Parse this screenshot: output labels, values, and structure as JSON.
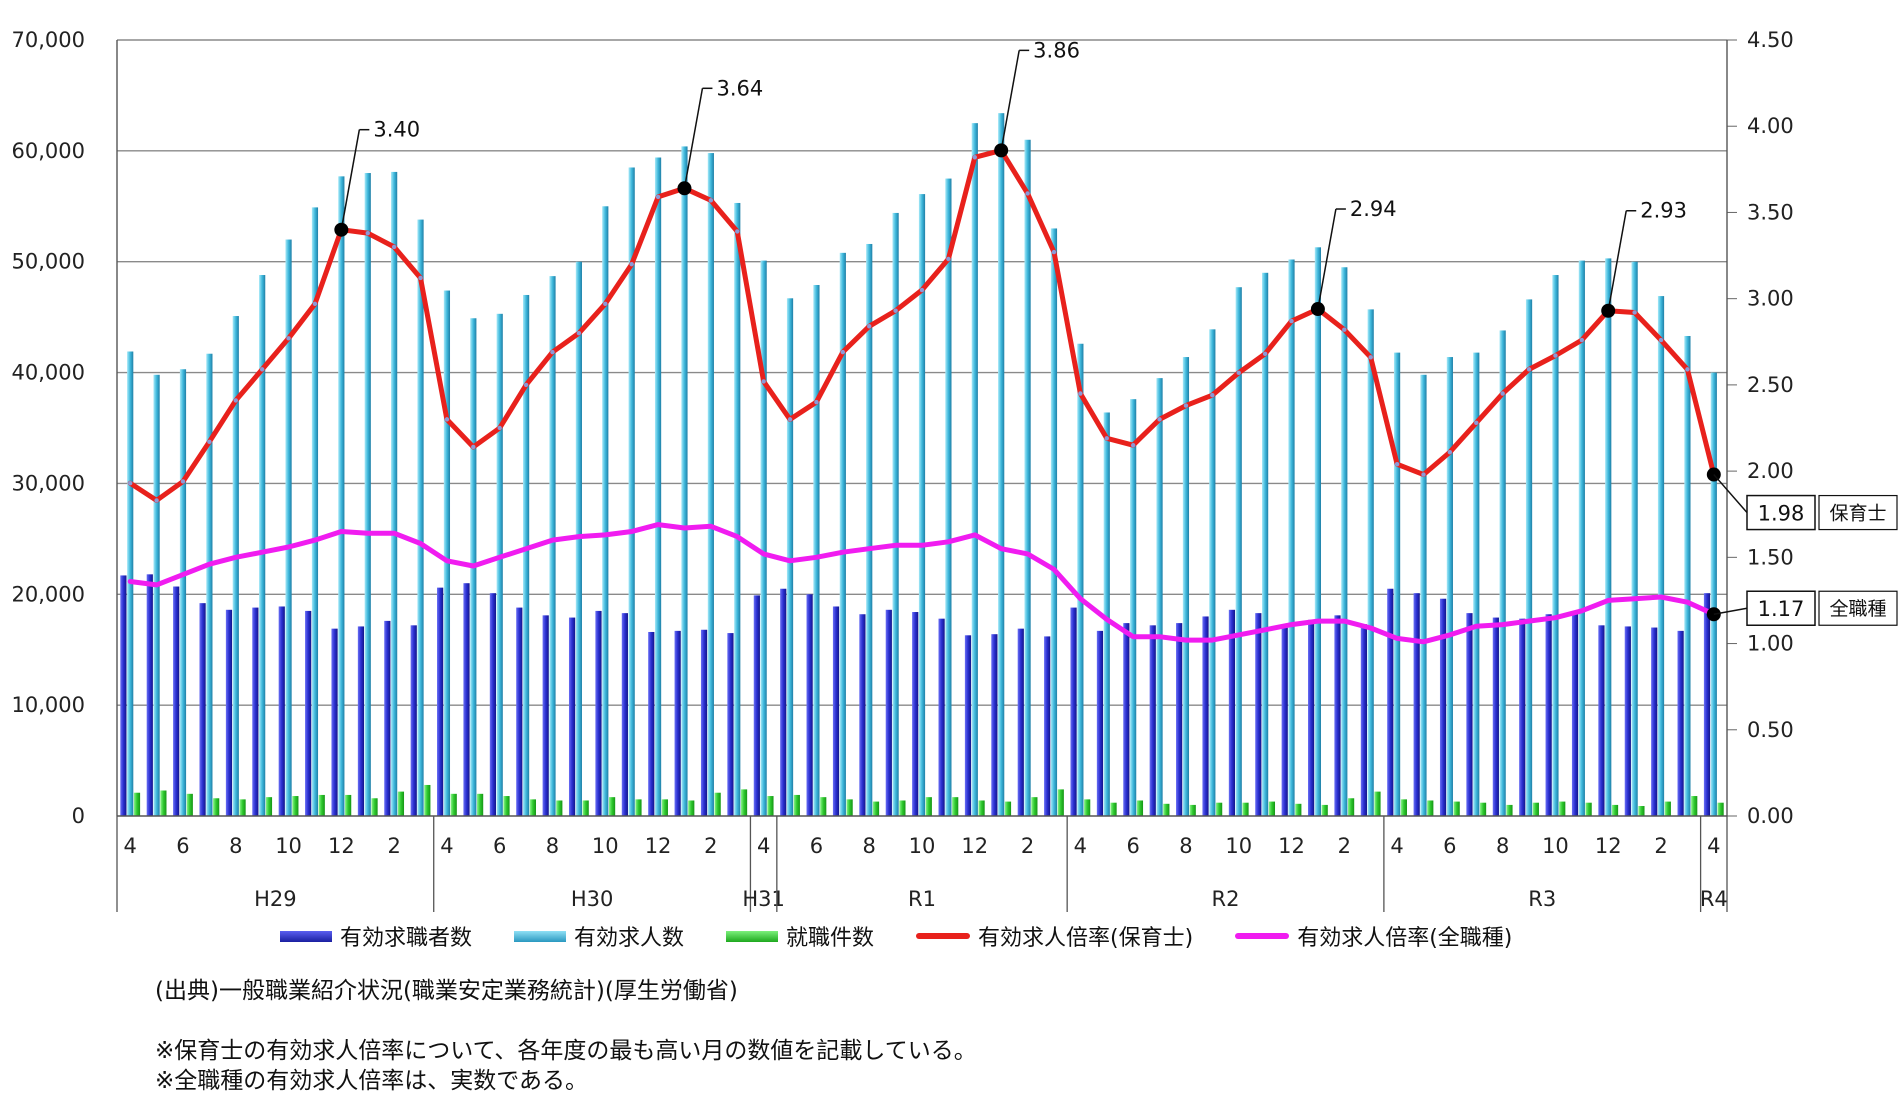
{
  "chart_data": {
    "type": "bar+line",
    "title": "",
    "xlabel": "",
    "ylabel_left": "",
    "ylabel_right": "",
    "ylim_left": [
      0,
      70000
    ],
    "ylim_right": [
      0,
      4.5
    ],
    "yticks_left": [
      "0",
      "10,000",
      "20,000",
      "30,000",
      "40,000",
      "50,000",
      "60,000",
      "70,000"
    ],
    "yticks_right": [
      "0.00",
      "0.50",
      "1.00",
      "1.50",
      "2.00",
      "2.50",
      "3.00",
      "3.50",
      "4.00",
      "4.50"
    ],
    "months": [
      4,
      5,
      6,
      7,
      8,
      9,
      10,
      11,
      12,
      1,
      2,
      3,
      4,
      5,
      6,
      7,
      8,
      9,
      10,
      11,
      12,
      1,
      2,
      3,
      4,
      5,
      6,
      7,
      8,
      9,
      10,
      11,
      12,
      1,
      2,
      3,
      4,
      5,
      6,
      7,
      8,
      9,
      10,
      11,
      12,
      1,
      2,
      3,
      4,
      5,
      6,
      7,
      8,
      9,
      10,
      11,
      12,
      1,
      2,
      3,
      4
    ],
    "periods": [
      {
        "label": "H29",
        "start": 0,
        "end": 11
      },
      {
        "label": "H30",
        "start": 12,
        "end": 23
      },
      {
        "label": "H31",
        "start": 24,
        "end": 24
      },
      {
        "label": "R1",
        "start": 25,
        "end": 35
      },
      {
        "label": "R2",
        "start": 36,
        "end": 47
      },
      {
        "label": "R3",
        "start": 48,
        "end": 59
      },
      {
        "label": "R4",
        "start": 60,
        "end": 60
      }
    ],
    "series": [
      {
        "name": "有効求職者数",
        "type": "bar",
        "axis": "left",
        "values": [
          21700,
          21800,
          20700,
          19200,
          18600,
          18800,
          18900,
          18500,
          16900,
          17100,
          17600,
          17200,
          20600,
          21000,
          20100,
          18800,
          18100,
          17900,
          18500,
          18300,
          16600,
          16700,
          16800,
          16500,
          19900,
          20500,
          20000,
          18900,
          18200,
          18600,
          18400,
          17800,
          16300,
          16400,
          16900,
          16200,
          18800,
          16700,
          17400,
          17200,
          17400,
          18000,
          18600,
          18300,
          17000,
          17700,
          18100,
          17300,
          20500,
          20100,
          19600,
          18300,
          17900,
          17800,
          18200,
          18400,
          17200,
          17100,
          17000,
          16700,
          20100
        ]
      },
      {
        "name": "有効求人数",
        "type": "bar",
        "axis": "left",
        "values": [
          41900,
          39800,
          40300,
          41700,
          45100,
          48800,
          52000,
          54900,
          57700,
          58000,
          58100,
          53800,
          47400,
          44900,
          45300,
          47000,
          48700,
          50000,
          55000,
          58500,
          59400,
          60400,
          59800,
          55300,
          50100,
          46700,
          47900,
          50800,
          51600,
          54400,
          56100,
          57500,
          62500,
          63400,
          61000,
          53000,
          42600,
          36400,
          37600,
          39500,
          41400,
          43900,
          47700,
          49000,
          50200,
          51300,
          49500,
          45700,
          41800,
          39800,
          41400,
          41800,
          43800,
          46600,
          48800,
          50100,
          50300,
          50000,
          46900,
          43300,
          40000
        ]
      },
      {
        "name": "就職件数",
        "type": "bar",
        "axis": "left",
        "values": [
          2100,
          2300,
          2000,
          1600,
          1500,
          1700,
          1800,
          1900,
          1900,
          1600,
          2200,
          2800,
          2000,
          2000,
          1800,
          1500,
          1400,
          1400,
          1700,
          1500,
          1500,
          1400,
          2100,
          2400,
          1800,
          1900,
          1700,
          1500,
          1300,
          1400,
          1700,
          1700,
          1400,
          1300,
          1700,
          2400,
          1500,
          1200,
          1400,
          1100,
          1000,
          1200,
          1200,
          1300,
          1100,
          1000,
          1600,
          2200,
          1500,
          1400,
          1300,
          1200,
          1000,
          1200,
          1300,
          1200,
          1000,
          900,
          1300,
          1800,
          1200
        ]
      },
      {
        "name": "有効求人倍率(保育士)",
        "type": "line",
        "axis": "right",
        "values": [
          1.93,
          1.83,
          1.94,
          2.17,
          2.41,
          2.59,
          2.77,
          2.97,
          3.4,
          3.38,
          3.3,
          3.12,
          2.3,
          2.14,
          2.25,
          2.5,
          2.69,
          2.8,
          2.97,
          3.2,
          3.59,
          3.64,
          3.57,
          3.39,
          2.52,
          2.3,
          2.4,
          2.69,
          2.84,
          2.93,
          3.05,
          3.23,
          3.82,
          3.86,
          3.61,
          3.27,
          2.45,
          2.19,
          2.15,
          2.3,
          2.38,
          2.44,
          2.57,
          2.68,
          2.87,
          2.94,
          2.82,
          2.66,
          2.04,
          1.98,
          2.11,
          2.28,
          2.45,
          2.59,
          2.67,
          2.76,
          2.93,
          2.92,
          2.76,
          2.59,
          1.98
        ]
      },
      {
        "name": "有効求人倍率(全職種)",
        "type": "line",
        "axis": "right",
        "values": [
          1.36,
          1.34,
          1.4,
          1.46,
          1.5,
          1.53,
          1.56,
          1.6,
          1.65,
          1.64,
          1.64,
          1.58,
          1.48,
          1.45,
          1.5,
          1.55,
          1.6,
          1.62,
          1.63,
          1.65,
          1.69,
          1.67,
          1.68,
          1.62,
          1.52,
          1.48,
          1.5,
          1.53,
          1.55,
          1.57,
          1.57,
          1.59,
          1.63,
          1.55,
          1.52,
          1.43,
          1.26,
          1.14,
          1.04,
          1.04,
          1.02,
          1.02,
          1.05,
          1.08,
          1.11,
          1.13,
          1.13,
          1.09,
          1.03,
          1.01,
          1.05,
          1.1,
          1.11,
          1.13,
          1.15,
          1.19,
          1.25,
          1.26,
          1.27,
          1.24,
          1.17
        ]
      }
    ],
    "annotations": [
      {
        "index": 8,
        "text": "3.40"
      },
      {
        "index": 21,
        "text": "3.64"
      },
      {
        "index": 33,
        "text": "3.86"
      },
      {
        "index": 45,
        "text": "2.94"
      },
      {
        "index": 56,
        "text": "2.93"
      }
    ],
    "end_labels": [
      {
        "series": 3,
        "value": "1.98",
        "name": "保育士"
      },
      {
        "series": 4,
        "value": "1.17",
        "name": "全職種"
      }
    ],
    "grid": true,
    "legend_position": "bottom"
  },
  "colors": {
    "jobseekers": "#2a2fd0",
    "openings": "#3eb8dc",
    "hires": "#2ec92e",
    "ratio_childcare": "#e8211c",
    "ratio_all": "#f01cf0"
  },
  "legend": {
    "jobseekers": "有効求職者数",
    "openings": "有効求人数",
    "hires": "就職件数",
    "ratio_childcare": "有効求人倍率(保育士)",
    "ratio_all": "有効求人倍率(全職種)"
  },
  "notes": {
    "source": "(出典)一般職業紹介状況(職業安定業務統計)(厚生労働省)",
    "note1": "※保育士の有効求人倍率について、各年度の最も高い月の数値を記載している。",
    "note2": "※全職種の有効求人倍率は、実数である。"
  }
}
